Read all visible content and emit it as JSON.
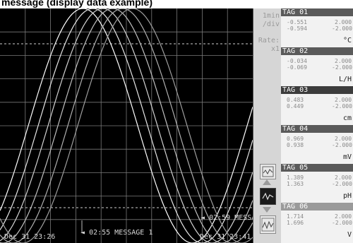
{
  "caption": "message (display data example)",
  "plot": {
    "time_start": "Dec 31 23:26",
    "time_end": "Dec 31 23:41",
    "messages": [
      {
        "time": "02:55",
        "text": "MESSAGE 1",
        "display": "02:55 MESSAGE 1"
      },
      {
        "time": "02:59",
        "text": "MESSA",
        "display": "02:59 MESSA"
      }
    ]
  },
  "scale_panel": {
    "time_div": "1min",
    "time_div_unit": "/div",
    "rate_label": "Rate:",
    "rate_value": "x1",
    "icons": [
      "trend-zoom-icon",
      "waveform-icon",
      "waveform-compare-icon"
    ]
  },
  "tags": [
    {
      "name": "TAG 01",
      "v1": "-0.551",
      "v2": "-0.594",
      "max": "2.000",
      "min": "-2.000",
      "unit": "°C",
      "color": "#5a5a5a"
    },
    {
      "name": "TAG 02",
      "v1": "-0.034",
      "v2": "-0.069",
      "max": "2.000",
      "min": "-2.000",
      "unit": "L/H",
      "color": "#5a5a5a"
    },
    {
      "name": "TAG 03",
      "v1": "0.483",
      "v2": "0.449",
      "max": "2.000",
      "min": "-2.000",
      "unit": "cm",
      "color": "#3c3c3c"
    },
    {
      "name": "TAG 04",
      "v1": "0.969",
      "v2": "0.938",
      "max": "2.000",
      "min": "-2.000",
      "unit": "mV",
      "color": "#5a5a5a"
    },
    {
      "name": "TAG 05",
      "v1": "1.389",
      "v2": "1.363",
      "max": "2.000",
      "min": "-2.000",
      "unit": "pH",
      "color": "#5a5a5a"
    },
    {
      "name": "TAG 06",
      "v1": "1.714",
      "v2": "1.696",
      "max": "2.000",
      "min": "-2.000",
      "unit": "V",
      "color": "#9a9a9a"
    }
  ]
}
